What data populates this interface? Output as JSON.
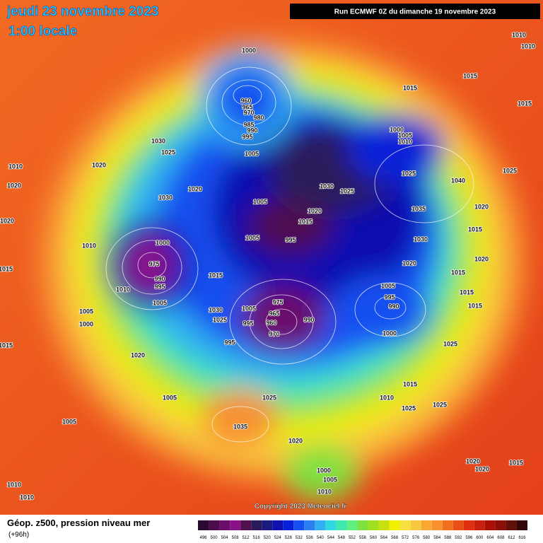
{
  "header": {
    "date": "jeudi 23 novembre 2023",
    "time": "1:00 locale",
    "run": "Run ECMWF 0Z du dimanche 19 novembre 2023"
  },
  "footer": {
    "copyright": "Copyright 2023 Meteociel.fr",
    "field": "Géop. z500, pression niveau mer",
    "lead": "(+96h)"
  },
  "legend": {
    "values": [
      496,
      500,
      504,
      508,
      512,
      516,
      520,
      524,
      528,
      532,
      536,
      540,
      544,
      548,
      552,
      556,
      560,
      564,
      568,
      572,
      576,
      580,
      584,
      588,
      592,
      596,
      600,
      604,
      608,
      612,
      616
    ],
    "colors": [
      "#2a0a30",
      "#4a0c4a",
      "#6a0e6a",
      "#8a1288",
      "#501050",
      "#2a1a5a",
      "#1a1a80",
      "#1010b0",
      "#0a20d8",
      "#1850f0",
      "#2a80f0",
      "#30b0f0",
      "#30d8e0",
      "#40e8b0",
      "#60f080",
      "#80e040",
      "#a0e020",
      "#c8e010",
      "#f0f000",
      "#f8e040",
      "#f8c840",
      "#f8a830",
      "#f89030",
      "#f07020",
      "#e85018",
      "#e03010",
      "#c82010",
      "#a81008",
      "#881008",
      "#601008",
      "#300808"
    ]
  },
  "pressure_labels": [
    1000,
    960,
    965,
    970,
    980,
    985,
    990,
    995,
    1005,
    1030,
    1025,
    1010,
    1020,
    1020,
    1030,
    1020,
    1000,
    975,
    990,
    995,
    1010,
    1005,
    1010,
    1005,
    1000,
    1020,
    1005,
    1005,
    1035,
    1030,
    1025,
    1005,
    975,
    965,
    960,
    970,
    990,
    995,
    995,
    1005,
    1005,
    995,
    1015,
    1020,
    1030,
    1025,
    1015,
    1000,
    1005,
    1010,
    1025,
    1035,
    1040,
    1030,
    1020,
    1005,
    995,
    990,
    1000,
    1025,
    1015,
    1010,
    1025,
    1025,
    1025,
    1020,
    1000,
    1005,
    1010,
    1010,
    1010,
    1015,
    1015,
    1015,
    1025,
    1020,
    1015,
    1020,
    1015,
    1015,
    1015,
    1020,
    1020,
    1015,
    1015,
    1015,
    1020,
    1010,
    1010
  ]
}
